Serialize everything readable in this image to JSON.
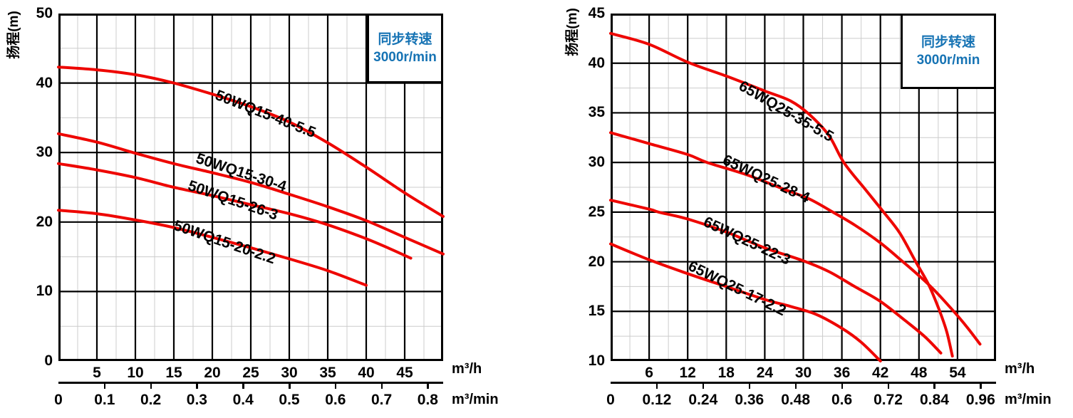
{
  "colors": {
    "curve_red": "#ee0600",
    "legend_blue": "#1673b4",
    "grid_major": "#000000",
    "grid_minor": "#cccccc",
    "text": "#000000",
    "background": "#ffffff"
  },
  "chart_data": [
    {
      "type": "line",
      "title": "",
      "series_family": "50WQ15",
      "y_axis_label": "扬程(m)",
      "legend_box": [
        "同步转速",
        "3000r/min"
      ],
      "x_axis_unit_primary": "m³/h",
      "x_axis_unit_secondary": "m³/min",
      "x_axis": {
        "min": 0,
        "max": 50,
        "major_step": 5,
        "minor_step": 2.5,
        "primary_tick_labels": [
          {
            "t": "5",
            "v": 5
          },
          {
            "t": "10",
            "v": 10
          },
          {
            "t": "15",
            "v": 15
          },
          {
            "t": "20",
            "v": 20
          },
          {
            "t": "25",
            "v": 25
          },
          {
            "t": "30",
            "v": 30
          },
          {
            "t": "35",
            "v": 35
          },
          {
            "t": "40",
            "v": 40
          },
          {
            "t": "45",
            "v": 45
          }
        ],
        "secondary_tick_labels": [
          {
            "t": "0",
            "v": 0
          },
          {
            "t": "0.1",
            "v": 0.1
          },
          {
            "t": "0.2",
            "v": 0.2
          },
          {
            "t": "0.3",
            "v": 0.3
          },
          {
            "t": "0.4",
            "v": 0.4
          },
          {
            "t": "0.5",
            "v": 0.5
          },
          {
            "t": "0.6",
            "v": 0.6
          },
          {
            "t": "0.7",
            "v": 0.7
          },
          {
            "t": "0.8",
            "v": 0.8
          }
        ]
      },
      "y_axis": {
        "min": 0,
        "max": 50,
        "major_step": 10,
        "minor_step": 5,
        "tick_labels": [
          {
            "t": "50",
            "v": 50
          },
          {
            "t": "40",
            "v": 40
          },
          {
            "t": "30",
            "v": 30
          },
          {
            "t": "20",
            "v": 20
          },
          {
            "t": "10",
            "v": 10
          },
          {
            "t": "0",
            "v": 0
          }
        ]
      },
      "series": [
        {
          "name": "50WQ15-40-5.5",
          "label_at": [
            20.8,
            39.3
          ],
          "label_angle": 21.5,
          "points": [
            [
              0,
              42.3
            ],
            [
              5,
              41.9
            ],
            [
              10,
              41.2
            ],
            [
              15,
              40
            ],
            [
              20,
              38.4
            ],
            [
              25,
              36.6
            ],
            [
              30,
              34.4
            ],
            [
              35,
              31.4
            ],
            [
              40,
              27.9
            ],
            [
              45,
              24.2
            ],
            [
              50,
              20.8
            ]
          ]
        },
        {
          "name": "50WQ15-30-4",
          "label_at": [
            18.2,
            30.2
          ],
          "label_angle": 18,
          "points": [
            [
              0,
              32.7
            ],
            [
              5,
              31.5
            ],
            [
              10,
              29.9
            ],
            [
              15,
              28.4
            ],
            [
              20,
              27.1
            ],
            [
              25,
              25.7
            ],
            [
              30,
              24
            ],
            [
              35,
              22.2
            ],
            [
              40,
              20.2
            ],
            [
              45,
              17.8
            ],
            [
              50,
              15.4
            ]
          ]
        },
        {
          "name": "50WQ15-26-3",
          "label_at": [
            17.2,
            26.3
          ],
          "label_angle": 19,
          "points": [
            [
              0,
              28.4
            ],
            [
              5,
              27.5
            ],
            [
              10,
              26.4
            ],
            [
              15,
              25
            ],
            [
              20,
              23.8
            ],
            [
              25,
              22.5
            ],
            [
              30,
              21.2
            ],
            [
              35,
              19.6
            ],
            [
              40,
              17.6
            ],
            [
              43,
              16.2
            ],
            [
              45.8,
              14.8
            ]
          ]
        },
        {
          "name": "50WQ15-20-2.2",
          "label_at": [
            15.4,
            20.6
          ],
          "label_angle": 19,
          "points": [
            [
              0,
              21.7
            ],
            [
              5,
              21.2
            ],
            [
              10,
              20.3
            ],
            [
              15,
              19.2
            ],
            [
              20,
              17.8
            ],
            [
              25,
              16.3
            ],
            [
              30,
              14.7
            ],
            [
              35,
              13
            ],
            [
              40,
              10.9
            ]
          ]
        }
      ]
    },
    {
      "type": "line",
      "title": "",
      "series_family": "65WQ25",
      "y_axis_label": "扬程(m)",
      "legend_box": [
        "同步转速",
        "3000r/min"
      ],
      "x_axis_unit_primary": "m³/h",
      "x_axis_unit_secondary": "m³/min",
      "x_axis": {
        "min": 0,
        "max": 60,
        "major_step": 6,
        "minor_step": 3,
        "primary_tick_labels": [
          {
            "t": "6",
            "v": 6
          },
          {
            "t": "12",
            "v": 12
          },
          {
            "t": "18",
            "v": 18
          },
          {
            "t": "24",
            "v": 24
          },
          {
            "t": "30",
            "v": 30
          },
          {
            "t": "36",
            "v": 36
          },
          {
            "t": "42",
            "v": 42
          },
          {
            "t": "48",
            "v": 48
          },
          {
            "t": "54",
            "v": 54
          }
        ],
        "secondary_tick_labels": [
          {
            "t": "0",
            "v": 0
          },
          {
            "t": "0.12",
            "v": 0.12
          },
          {
            "t": "0.24",
            "v": 0.24
          },
          {
            "t": "0.36",
            "v": 0.36
          },
          {
            "t": "0.48",
            "v": 0.48
          },
          {
            "t": "0.6",
            "v": 0.6
          },
          {
            "t": "0.72",
            "v": 0.72
          },
          {
            "t": "0.84",
            "v": 0.84
          },
          {
            "t": "0.96",
            "v": 0.96
          }
        ]
      },
      "y_axis": {
        "min": 10,
        "max": 45,
        "major_step": 5,
        "minor_step": 2.5,
        "tick_labels": [
          {
            "t": "45",
            "v": 45
          },
          {
            "t": "40",
            "v": 40
          },
          {
            "t": "35",
            "v": 35
          },
          {
            "t": "30",
            "v": 30
          },
          {
            "t": "25",
            "v": 25
          },
          {
            "t": "20",
            "v": 20
          },
          {
            "t": "15",
            "v": 15
          },
          {
            "t": "10",
            "v": 10
          }
        ]
      },
      "series": [
        {
          "name": "65WQ25-35-5.5",
          "label_at": [
            20.7,
            38.5
          ],
          "label_angle": 30,
          "points": [
            [
              0,
              43
            ],
            [
              6,
              41.9
            ],
            [
              12,
              40.1
            ],
            [
              18,
              38.7
            ],
            [
              24,
              37.2
            ],
            [
              28,
              36.2
            ],
            [
              31,
              34.8
            ],
            [
              34,
              32.7
            ],
            [
              36.3,
              30
            ],
            [
              39.5,
              27.4
            ],
            [
              42.5,
              25
            ],
            [
              45,
              22.9
            ],
            [
              47.5,
              20
            ],
            [
              49.5,
              17.7
            ],
            [
              51,
              15.4
            ],
            [
              52.3,
              13
            ],
            [
              53.2,
              10.5
            ]
          ]
        },
        {
          "name": "65WQ25-28-4",
          "label_at": [
            18.1,
            31
          ],
          "label_angle": 25,
          "points": [
            [
              0,
              33
            ],
            [
              6,
              31.9
            ],
            [
              12,
              30.8
            ],
            [
              15,
              30
            ],
            [
              21,
              28.8
            ],
            [
              27,
              27.3
            ],
            [
              31,
              26.3
            ],
            [
              34.6,
              25
            ],
            [
              38,
              23.7
            ],
            [
              42,
              21.9
            ],
            [
              45.5,
              20
            ],
            [
              48,
              18.6
            ],
            [
              50.3,
              17.2
            ],
            [
              53,
              15.3
            ],
            [
              55.5,
              13.4
            ],
            [
              57.5,
              11.7
            ]
          ]
        },
        {
          "name": "65WQ25-22-3",
          "label_at": [
            15.1,
            24.8
          ],
          "label_angle": 25,
          "points": [
            [
              0,
              26.2
            ],
            [
              6,
              25.3
            ],
            [
              7.5,
              25
            ],
            [
              12,
              24.3
            ],
            [
              18,
              23
            ],
            [
              24,
              21.4
            ],
            [
              30,
              20.1
            ],
            [
              34,
              19
            ],
            [
              38,
              17.5
            ],
            [
              42,
              16
            ],
            [
              46,
              14
            ],
            [
              49,
              12.4
            ],
            [
              51.4,
              10.8
            ]
          ]
        },
        {
          "name": "65WQ25-17-2.2",
          "label_at": [
            12.8,
            20.3
          ],
          "label_angle": 26,
          "points": [
            [
              0,
              21.8
            ],
            [
              6,
              20.2
            ],
            [
              12,
              18.8
            ],
            [
              18,
              17.5
            ],
            [
              24,
              16.2
            ],
            [
              28,
              15.5
            ],
            [
              32,
              14.7
            ],
            [
              36,
              13.3
            ],
            [
              39,
              11.9
            ],
            [
              42,
              10
            ]
          ]
        }
      ]
    }
  ]
}
